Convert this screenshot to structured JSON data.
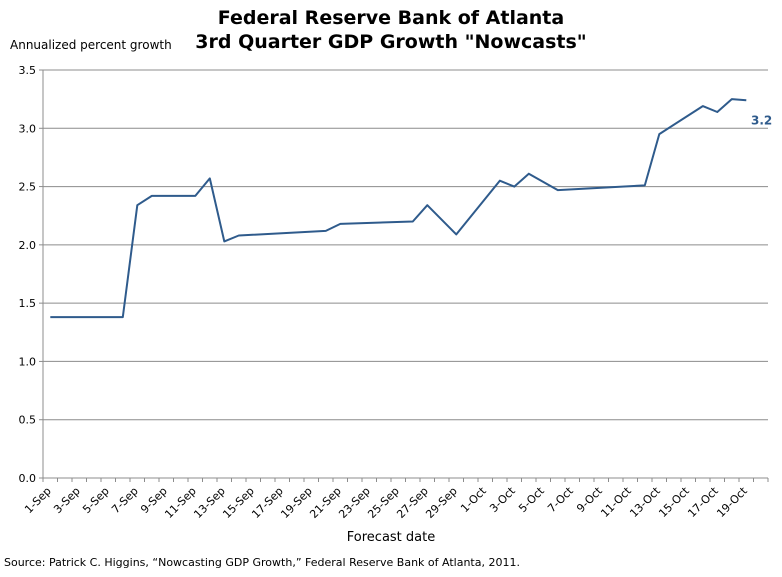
{
  "chart_data": {
    "type": "line",
    "title": "Federal Reserve Bank of Atlanta",
    "subtitle": "3rd Quarter GDP Growth \"Nowcasts\"",
    "ylabel": "Annualized percent growth",
    "xlabel": "Forecast date",
    "source": "Source: Patrick C. Higgins, “Nowcasting GDP Growth,” Federal Reserve Bank of Atlanta,  2011.",
    "ylim": [
      0,
      3.5
    ],
    "yticks": [
      "0.0",
      "0.5",
      "1.0",
      "1.5",
      "2.0",
      "2.5",
      "3.0",
      "3.5"
    ],
    "xticks": [
      "1-Sep",
      "3-Sep",
      "5-Sep",
      "7-Sep",
      "9-Sep",
      "11-Sep",
      "13-Sep",
      "15-Sep",
      "17-Sep",
      "19-Sep",
      "21-Sep",
      "23-Sep",
      "25-Sep",
      "27-Sep",
      "29-Sep",
      "1-Oct",
      "3-Oct",
      "5-Oct",
      "7-Oct",
      "9-Oct",
      "11-Oct",
      "13-Oct",
      "15-Oct",
      "17-Oct",
      "19-Oct"
    ],
    "grid": "horizontal",
    "line_color": "#2F5B8C",
    "series": [
      {
        "x": [
          "1-Sep",
          "6-Sep",
          "7-Sep",
          "8-Sep",
          "11-Sep",
          "12-Sep",
          "13-Sep",
          "14-Sep",
          "20-Sep",
          "21-Sep",
          "26-Sep",
          "27-Sep",
          "29-Sep",
          "2-Oct",
          "3-Oct",
          "4-Oct",
          "6-Oct",
          "12-Oct",
          "13-Oct",
          "16-Oct",
          "17-Oct",
          "18-Oct",
          "19-Oct"
        ],
        "values": [
          1.38,
          1.38,
          2.34,
          2.42,
          2.42,
          2.57,
          2.03,
          2.08,
          2.12,
          2.18,
          2.2,
          2.34,
          2.09,
          2.55,
          2.5,
          2.61,
          2.47,
          2.51,
          2.95,
          3.19,
          3.14,
          3.25,
          3.24
        ]
      }
    ],
    "end_label": "3.2"
  }
}
